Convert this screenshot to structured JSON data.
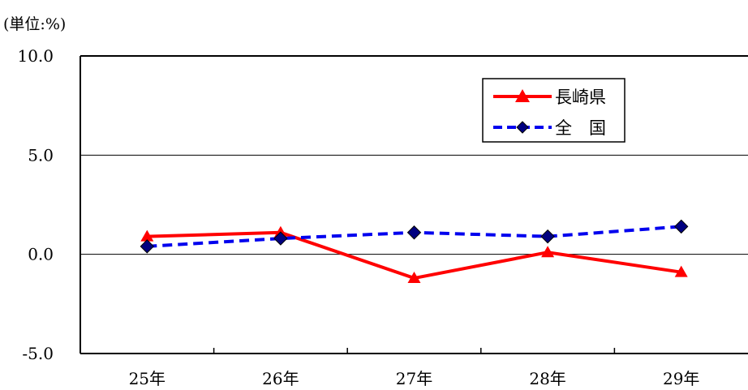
{
  "chart_data": {
    "type": "line",
    "unit_label": "(単位:%)",
    "categories": [
      "25年",
      "26年",
      "27年",
      "28年",
      "29年"
    ],
    "y_tick_labels": [
      "10.0",
      "5.0",
      "0.0",
      "-5.0"
    ],
    "ylim": [
      -5,
      10
    ],
    "grid": true,
    "legend_position": "top-right",
    "series": [
      {
        "name": "長崎県",
        "values": [
          0.9,
          1.1,
          -1.2,
          0.1,
          -0.9
        ],
        "color": "#ff0000",
        "style": "solid",
        "marker": "triangle"
      },
      {
        "name": "全　国",
        "values": [
          0.4,
          0.8,
          1.1,
          0.9,
          1.4
        ],
        "color": "#0000ee",
        "style": "dashed",
        "marker": "diamond"
      }
    ]
  }
}
